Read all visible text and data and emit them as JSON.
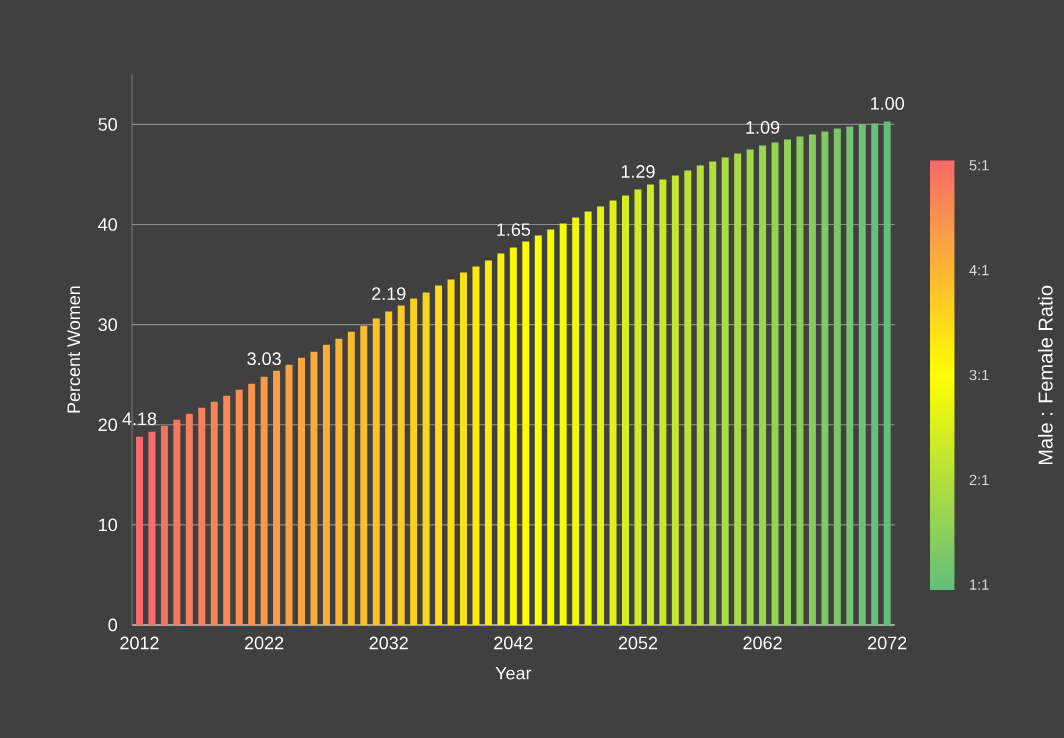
{
  "chart_data": {
    "type": "bar",
    "xlabel": "Year",
    "ylabel": "Percent Women",
    "clabel": "Male : Female Ratio",
    "x": [
      2012,
      2013,
      2014,
      2015,
      2016,
      2017,
      2018,
      2019,
      2020,
      2021,
      2022,
      2023,
      2024,
      2025,
      2026,
      2027,
      2028,
      2029,
      2030,
      2031,
      2032,
      2033,
      2034,
      2035,
      2036,
      2037,
      2038,
      2039,
      2040,
      2041,
      2042,
      2043,
      2044,
      2045,
      2046,
      2047,
      2048,
      2049,
      2050,
      2051,
      2052,
      2053,
      2054,
      2055,
      2056,
      2057,
      2058,
      2059,
      2060,
      2061,
      2062,
      2063,
      2064,
      2065,
      2066,
      2067,
      2068,
      2069,
      2070,
      2071,
      2072
    ],
    "values": [
      18.8,
      19.3,
      19.9,
      20.5,
      21.1,
      21.7,
      22.3,
      22.9,
      23.5,
      24.1,
      24.8,
      25.4,
      26.0,
      26.7,
      27.3,
      28.0,
      28.6,
      29.3,
      29.9,
      30.6,
      31.3,
      31.9,
      32.6,
      33.2,
      33.9,
      34.5,
      35.2,
      35.8,
      36.4,
      37.1,
      37.7,
      38.3,
      38.9,
      39.5,
      40.1,
      40.7,
      41.3,
      41.8,
      42.4,
      42.9,
      43.5,
      44.0,
      44.5,
      44.9,
      45.4,
      45.9,
      46.3,
      46.7,
      47.1,
      47.5,
      47.9,
      48.2,
      48.5,
      48.8,
      49.0,
      49.3,
      49.6,
      49.8,
      50.0,
      50.1,
      50.3
    ],
    "colors": [
      "#f8696b",
      "#f86e68",
      "#f87264",
      "#f97761",
      "#f97c5e",
      "#f9805a",
      "#f98557",
      "#fa8a54",
      "#fa8f50",
      "#fa934d",
      "#fa984a",
      "#fa9d46",
      "#fba143",
      "#fba63f",
      "#fbab3c",
      "#fbaf39",
      "#fcb436",
      "#fcb932",
      "#fcbd2f",
      "#fcc22c",
      "#fcc728",
      "#fdcb25",
      "#fdd021",
      "#fdd51e",
      "#fdda1b",
      "#fdde17",
      "#fee314",
      "#fee811",
      "#feec0d",
      "#fef10a",
      "#fff607",
      "#fffa03",
      "#ffff00",
      "#f9fd04",
      "#f4fa09",
      "#eef80d",
      "#e9f612",
      "#e3f316",
      "#def11a",
      "#d8ef1f",
      "#d2ec23",
      "#cdea28",
      "#c7e82c",
      "#c2e530",
      "#bce335",
      "#b7e139",
      "#b1df3e",
      "#abdc42",
      "#a6da46",
      "#a0d84b",
      "#9bd54f",
      "#95d353",
      "#90d158",
      "#8ace5c",
      "#84cc61",
      "#7fca65",
      "#79c769",
      "#74c56e",
      "#6ec372",
      "#69c077",
      "#63be7b"
    ],
    "xlim": [
      2011.4,
      2072.6
    ],
    "xticks": [
      2012,
      2022,
      2032,
      2042,
      2052,
      2062,
      2072
    ],
    "ylim": [
      0,
      55
    ],
    "yticks": [
      0,
      10,
      20,
      30,
      40,
      50
    ],
    "grid": "y",
    "clim": [
      1,
      5
    ],
    "cticks": [
      {
        "value": 1,
        "label": "1:1"
      },
      {
        "value": 2,
        "label": "2:1"
      },
      {
        "value": 3,
        "label": "3:1"
      },
      {
        "value": 4,
        "label": "4:1"
      },
      {
        "value": 5,
        "label": "5:1"
      }
    ],
    "annotations": [
      {
        "text": "4.18",
        "x": 2012,
        "y": 18.8
      },
      {
        "text": "3.03",
        "x": 2022,
        "y": 24.8
      },
      {
        "text": "2.19",
        "x": 2032,
        "y": 31.3
      },
      {
        "text": "1.65",
        "x": 2042,
        "y": 37.7
      },
      {
        "text": "1.29",
        "x": 2052,
        "y": 43.5
      },
      {
        "text": "1.09",
        "x": 2062,
        "y": 47.9
      },
      {
        "text": "1.00",
        "x": 2072,
        "y": 50.3
      }
    ]
  }
}
